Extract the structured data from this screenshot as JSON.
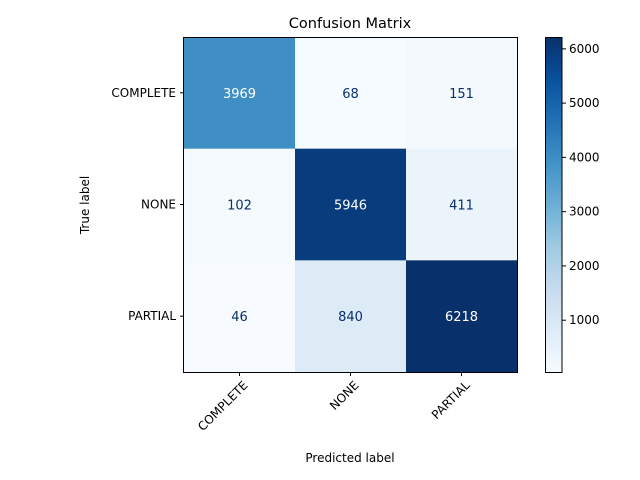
{
  "chart_data": {
    "type": "heatmap",
    "title": "Confusion Matrix",
    "xlabel": "Predicted label",
    "ylabel": "True label",
    "x_categories": [
      "COMPLETE",
      "NONE",
      "PARTIAL"
    ],
    "y_categories": [
      "COMPLETE",
      "NONE",
      "PARTIAL"
    ],
    "values": [
      [
        3969,
        68,
        151
      ],
      [
        102,
        5946,
        411
      ],
      [
        46,
        840,
        6218
      ]
    ],
    "colormap": "Blues",
    "colorbar": {
      "range": [
        46,
        6218
      ],
      "ticks": [
        1000,
        2000,
        3000,
        4000,
        5000,
        6000
      ]
    }
  }
}
